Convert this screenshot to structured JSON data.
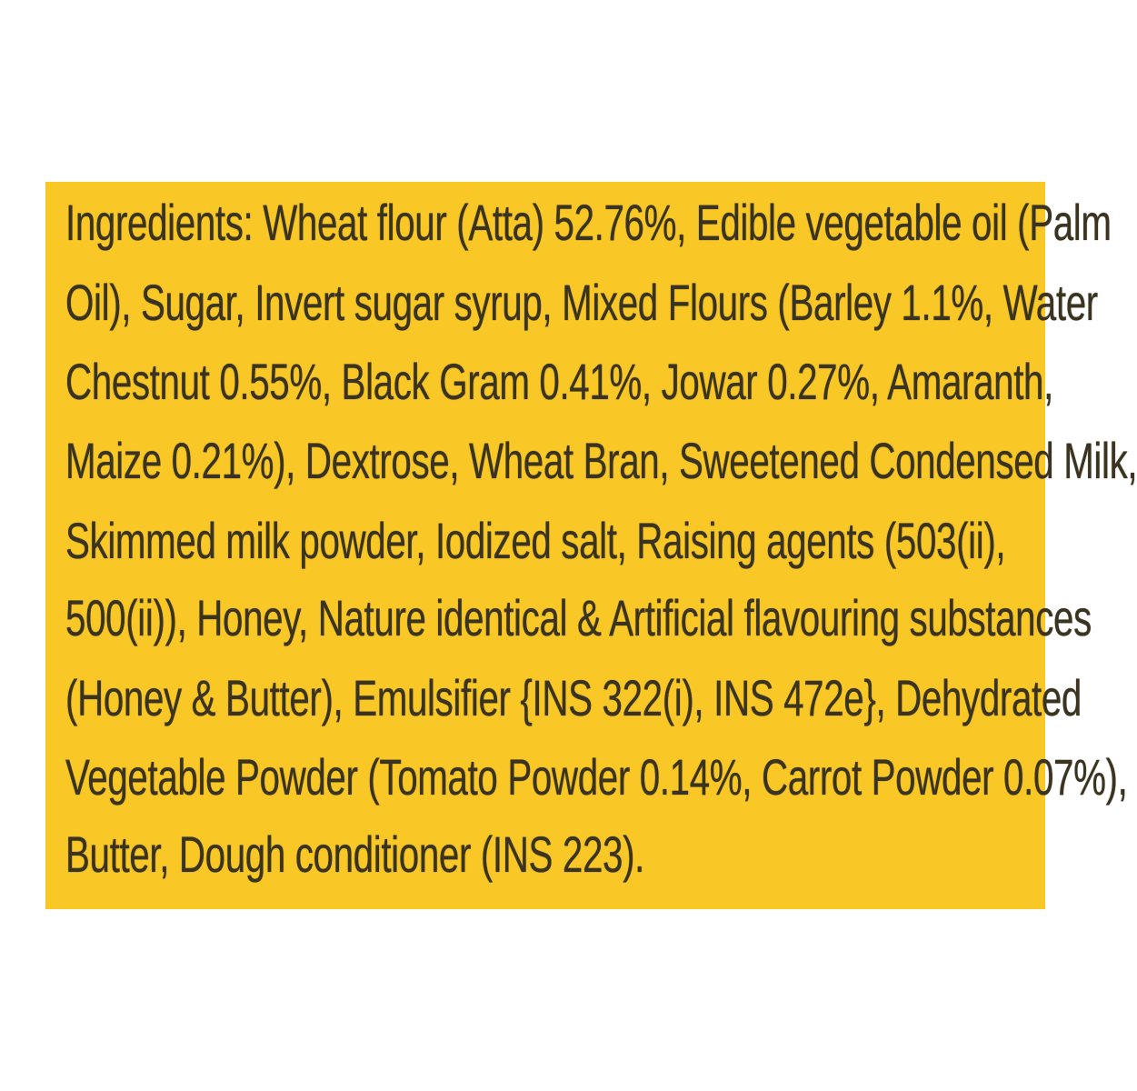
{
  "label": {
    "background_color": "#f9c826",
    "text_color": "#3a3320",
    "lines": [
      "Ingredients: Wheat flour (Atta) 52.76%, Edible vegetable oil (Palm",
      "Oil), Sugar, Invert sugar syrup, Mixed Flours (Barley 1.1%, Water",
      "Chestnut 0.55%, Black Gram 0.41%, Jowar 0.27%, Amaranth,",
      "Maize 0.21%), Dextrose, Wheat Bran, Sweetened Condensed Milk,",
      "Skimmed milk powder, Iodized salt, Raising agents (503(ii),",
      "500(ii)), Honey, Nature identical & Artificial flavouring substances",
      "(Honey & Butter), Emulsifier {INS 322(i), INS 472e}, Dehydrated",
      "Vegetable Powder (Tomato Powder 0.14%, Carrot Powder 0.07%),",
      "Butter, Dough conditioner (INS 223)."
    ]
  }
}
